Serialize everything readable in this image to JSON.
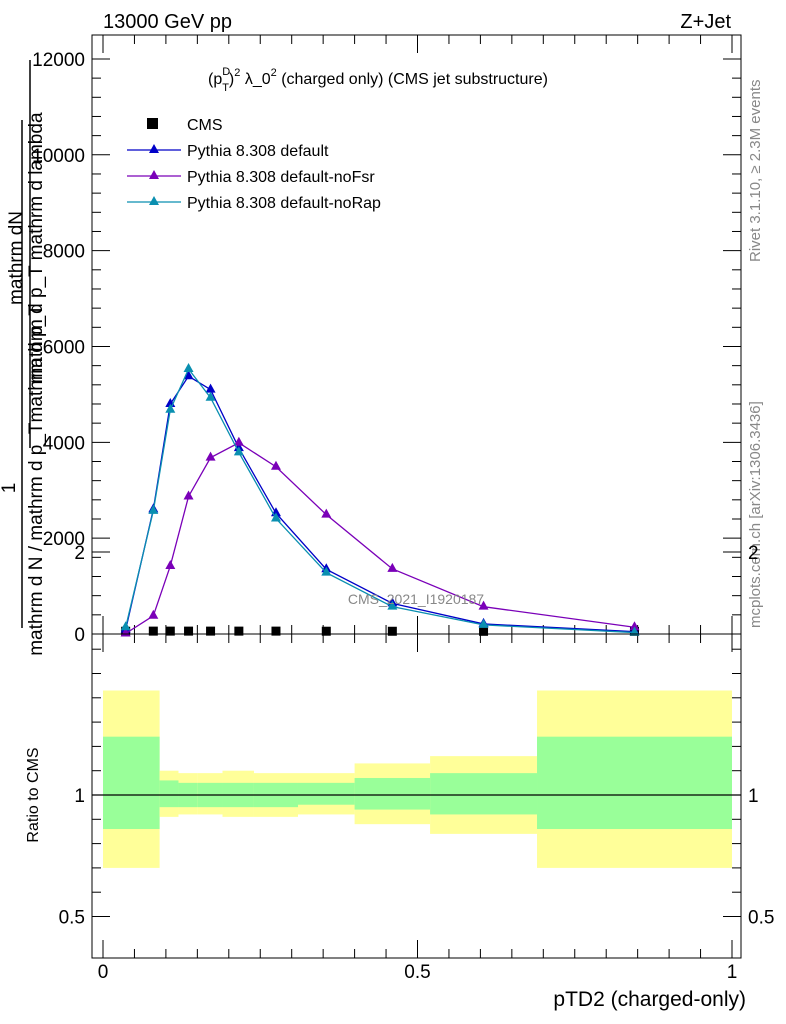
{
  "header": {
    "left": "13000 GeV pp",
    "right": "Z+Jet"
  },
  "side_labels": {
    "rivet": "Rivet 3.1.10, ≥ 2.3M events",
    "mcplots": "mcplots.cern.ch [arXiv:1306.3436]"
  },
  "watermark": "CMS_2021_I1920187",
  "colors": {
    "default": "#0000c8",
    "noFsr": "#7a00b8",
    "noRap": "#0a8fb0",
    "band_inner": "#99ff99",
    "band_outer": "#ffff99"
  },
  "chart_data": [
    {
      "type": "line",
      "title_parts": [
        "(p",
        "D",
        "T",
        ")",
        "2",
        " λ_0",
        "2",
        " (charged only) (CMS jet substructure)"
      ],
      "ylabel_num": "1",
      "ylabel_den": "mathrm d N / mathrm d p_Tmathrm d p_T",
      "ylabel_right": "mathrm d²N / mathrm d p_T mathrm d lambda",
      "ylabel_parts": [
        "mathrm dN",
        "mathrm d p_T mathrm d lambda"
      ],
      "ylim": [
        0,
        12500
      ],
      "yticks": [
        0,
        2000,
        4000,
        6000,
        8000,
        10000,
        12000
      ],
      "ytick_labels": [
        "0",
        "2000",
        "4000",
        "6000",
        "8000",
        "10000",
        "12000"
      ],
      "xlim": [
        -0.015,
        1.0
      ],
      "legend": [
        "CMS",
        "Pythia 8.308 default",
        "Pythia 8.308 default-noFsr",
        "Pythia 8.308 default-noRap"
      ],
      "legend_position": "top-left",
      "series": [
        {
          "name": "CMS",
          "marker": "square",
          "x": [
            0.036,
            0.08,
            0.107,
            0.136,
            0.171,
            0.216,
            0.275,
            0.355,
            0.46,
            0.605,
            0.845
          ],
          "y": [
            5,
            8,
            8,
            8,
            8,
            8,
            8,
            6,
            5,
            4,
            3
          ]
        },
        {
          "name": "Pythia 8.308 default",
          "marker": "triangle",
          "x": [
            0.036,
            0.08,
            0.107,
            0.136,
            0.171,
            0.216,
            0.275,
            0.355,
            0.46,
            0.605,
            0.845
          ],
          "y": [
            90,
            2600,
            4800,
            5380,
            5100,
            3880,
            2520,
            1350,
            640,
            210,
            50
          ]
        },
        {
          "name": "Pythia 8.308 default-noFsr",
          "marker": "triangle",
          "x": [
            0.036,
            0.08,
            0.107,
            0.136,
            0.171,
            0.216,
            0.275,
            0.355,
            0.46,
            0.605,
            0.845
          ],
          "y": [
            10,
            380,
            1420,
            2870,
            3680,
            3990,
            3490,
            2490,
            1360,
            570,
            140
          ]
        },
        {
          "name": "Pythia 8.308 default-noRap",
          "marker": "triangle",
          "x": [
            0.036,
            0.08,
            0.107,
            0.136,
            0.171,
            0.216,
            0.275,
            0.355,
            0.46,
            0.605,
            0.845
          ],
          "y": [
            140,
            2570,
            4680,
            5530,
            4930,
            3790,
            2410,
            1280,
            570,
            190,
            30
          ]
        }
      ]
    },
    {
      "type": "area",
      "ylabel": "Ratio to CMS",
      "xlabel": "pTD2 (charged-only)",
      "ylim": [
        0.42,
        2.25
      ],
      "yticks": [
        0.5,
        1,
        2
      ],
      "ytick_labels": [
        "0.5",
        "1",
        "2"
      ],
      "xlim": [
        -0.015,
        1.0
      ],
      "xticks": [
        0,
        0.5,
        1
      ],
      "xtick_labels": [
        "0",
        "0.5",
        "1"
      ],
      "bins": [
        {
          "lo": 0.0,
          "hi": 0.09,
          "inner": [
            0.86,
            1.24
          ],
          "outer": [
            0.7,
            1.43
          ]
        },
        {
          "lo": 0.09,
          "hi": 0.12,
          "inner": [
            0.95,
            1.06
          ],
          "outer": [
            0.91,
            1.1
          ]
        },
        {
          "lo": 0.12,
          "hi": 0.15,
          "inner": [
            0.95,
            1.05
          ],
          "outer": [
            0.92,
            1.09
          ]
        },
        {
          "lo": 0.15,
          "hi": 0.19,
          "inner": [
            0.95,
            1.05
          ],
          "outer": [
            0.92,
            1.09
          ]
        },
        {
          "lo": 0.19,
          "hi": 0.24,
          "inner": [
            0.95,
            1.05
          ],
          "outer": [
            0.91,
            1.1
          ]
        },
        {
          "lo": 0.24,
          "hi": 0.31,
          "inner": [
            0.95,
            1.05
          ],
          "outer": [
            0.91,
            1.09
          ]
        },
        {
          "lo": 0.31,
          "hi": 0.4,
          "inner": [
            0.96,
            1.05
          ],
          "outer": [
            0.92,
            1.09
          ]
        },
        {
          "lo": 0.4,
          "hi": 0.52,
          "inner": [
            0.94,
            1.07
          ],
          "outer": [
            0.88,
            1.13
          ]
        },
        {
          "lo": 0.52,
          "hi": 0.69,
          "inner": [
            0.92,
            1.09
          ],
          "outer": [
            0.84,
            1.16
          ]
        },
        {
          "lo": 0.69,
          "hi": 1.0,
          "inner": [
            0.86,
            1.24
          ],
          "outer": [
            0.7,
            1.43
          ]
        }
      ]
    }
  ]
}
